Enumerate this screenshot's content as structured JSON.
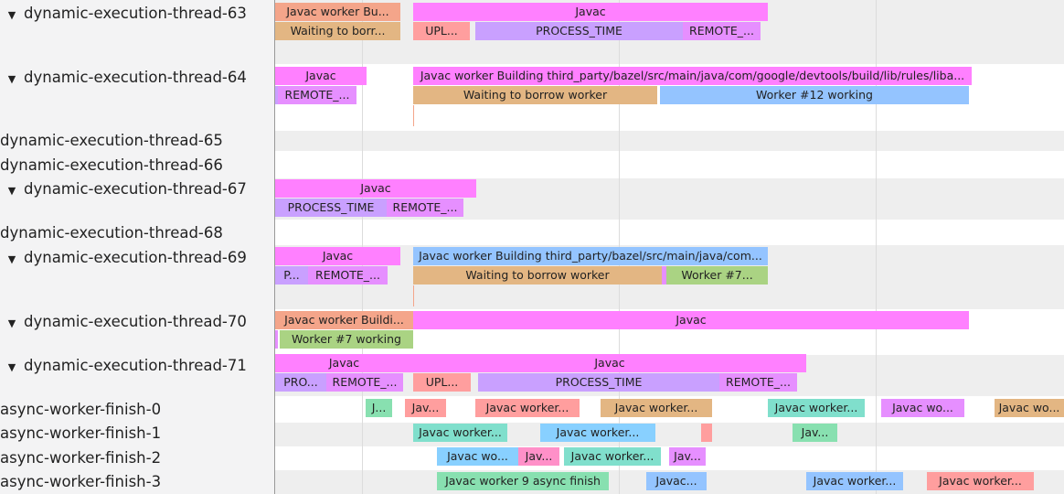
{
  "colors": {
    "pink": "#ff80ff",
    "salmon": "#f4a58a",
    "tan": "#e3b683",
    "red": "#ff9e9e",
    "purple": "#c9a0ff",
    "magenta": "#e68fff",
    "blue": "#94c4ff",
    "sky": "#88d0ff",
    "green": "#aad383",
    "teal": "#80dfcc",
    "mint": "#88e0b0",
    "rose": "#ff90c8",
    "rowAlt": "#eeeeee"
  },
  "tracks": [
    {
      "name": "dynamic-execution-thread-63",
      "expandable": true,
      "expand_icon": "triangle-down-icon"
    },
    {
      "name": "dynamic-execution-thread-64",
      "expandable": true,
      "expand_icon": "triangle-down-icon"
    },
    {
      "name": "dynamic-execution-thread-65",
      "expandable": false
    },
    {
      "name": "dynamic-execution-thread-66",
      "expandable": false
    },
    {
      "name": "dynamic-execution-thread-67",
      "expandable": true,
      "expand_icon": "triangle-down-icon"
    },
    {
      "name": "dynamic-execution-thread-68",
      "expandable": false
    },
    {
      "name": "dynamic-execution-thread-69",
      "expandable": true,
      "expand_icon": "triangle-down-icon"
    },
    {
      "name": "dynamic-execution-thread-70",
      "expandable": true,
      "expand_icon": "triangle-down-icon"
    },
    {
      "name": "dynamic-execution-thread-71",
      "expandable": true,
      "expand_icon": "triangle-down-icon"
    },
    {
      "name": "async-worker-finish-0",
      "expandable": false
    },
    {
      "name": "async-worker-finish-1",
      "expandable": false
    },
    {
      "name": "async-worker-finish-2",
      "expandable": false
    },
    {
      "name": "async-worker-finish-3",
      "expandable": false
    }
  ],
  "slices": [
    {
      "label": "Javac worker Bu...",
      "color": "salmon"
    },
    {
      "label": "Javac",
      "color": "pink"
    },
    {
      "label": "Waiting to borr...",
      "color": "tan"
    },
    {
      "label": "UPL...",
      "color": "red"
    },
    {
      "label": "PROCESS_TIME",
      "color": "purple"
    },
    {
      "label": "REMOTE_...",
      "color": "magenta"
    },
    {
      "label": "Javac",
      "color": "pink"
    },
    {
      "label": "Javac worker Building third_party/bazel/src/main/java/com/google/devtools/build/lib/rules/liba...",
      "color": "pink"
    },
    {
      "label": "",
      "color": "purple"
    },
    {
      "label": "REMOTE_...",
      "color": "magenta"
    },
    {
      "label": "Waiting to borrow worker",
      "color": "tan"
    },
    {
      "label": "Worker #12 working",
      "color": "blue"
    },
    {
      "label": "Javac",
      "color": "pink"
    },
    {
      "label": "PROCESS_TIME",
      "color": "purple"
    },
    {
      "label": "REMOTE_...",
      "color": "magenta"
    },
    {
      "label": "Javac",
      "color": "pink"
    },
    {
      "label": "Javac worker Building third_party/bazel/src/main/java/com...",
      "color": "blue"
    },
    {
      "label": "P...",
      "color": "purple"
    },
    {
      "label": "REMOTE_...",
      "color": "magenta"
    },
    {
      "label": "Waiting to borrow worker",
      "color": "tan"
    },
    {
      "label": "",
      "color": "magenta"
    },
    {
      "label": "Worker #7...",
      "color": "green"
    },
    {
      "label": "Javac worker Buildi...",
      "color": "salmon"
    },
    {
      "label": "Javac",
      "color": "pink"
    },
    {
      "label": "",
      "color": "magenta"
    },
    {
      "label": "Worker #7 working",
      "color": "green"
    },
    {
      "label": "Javac",
      "color": "pink"
    },
    {
      "label": "Javac",
      "color": "pink"
    },
    {
      "label": "PRO...",
      "color": "purple"
    },
    {
      "label": "REMOTE_...",
      "color": "magenta"
    },
    {
      "label": "UPL...",
      "color": "red"
    },
    {
      "label": "PROCESS_TIME",
      "color": "purple"
    },
    {
      "label": "REMOTE_...",
      "color": "magenta"
    },
    {
      "label": "J...",
      "color": "mint"
    },
    {
      "label": "Jav...",
      "color": "red"
    },
    {
      "label": "Javac worker...",
      "color": "red"
    },
    {
      "label": "Javac worker...",
      "color": "tan"
    },
    {
      "label": "Javac worker...",
      "color": "teal"
    },
    {
      "label": "Javac wo...",
      "color": "magenta"
    },
    {
      "label": "Javac wo...",
      "color": "tan"
    },
    {
      "label": "Javac worker...",
      "color": "teal"
    },
    {
      "label": "Javac worker...",
      "color": "sky"
    },
    {
      "label": "",
      "color": "red"
    },
    {
      "label": "Jav...",
      "color": "mint"
    },
    {
      "label": "Javac wo...",
      "color": "sky"
    },
    {
      "label": "Jav...",
      "color": "rose"
    },
    {
      "label": "Javac worker...",
      "color": "teal"
    },
    {
      "label": "Jav...",
      "color": "magenta"
    },
    {
      "label": "Javac worker 9 async finish",
      "color": "mint"
    },
    {
      "label": "Javac...",
      "color": "blue"
    },
    {
      "label": "Javac worker...",
      "color": "blue"
    },
    {
      "label": "Javac worker...",
      "color": "red"
    }
  ]
}
